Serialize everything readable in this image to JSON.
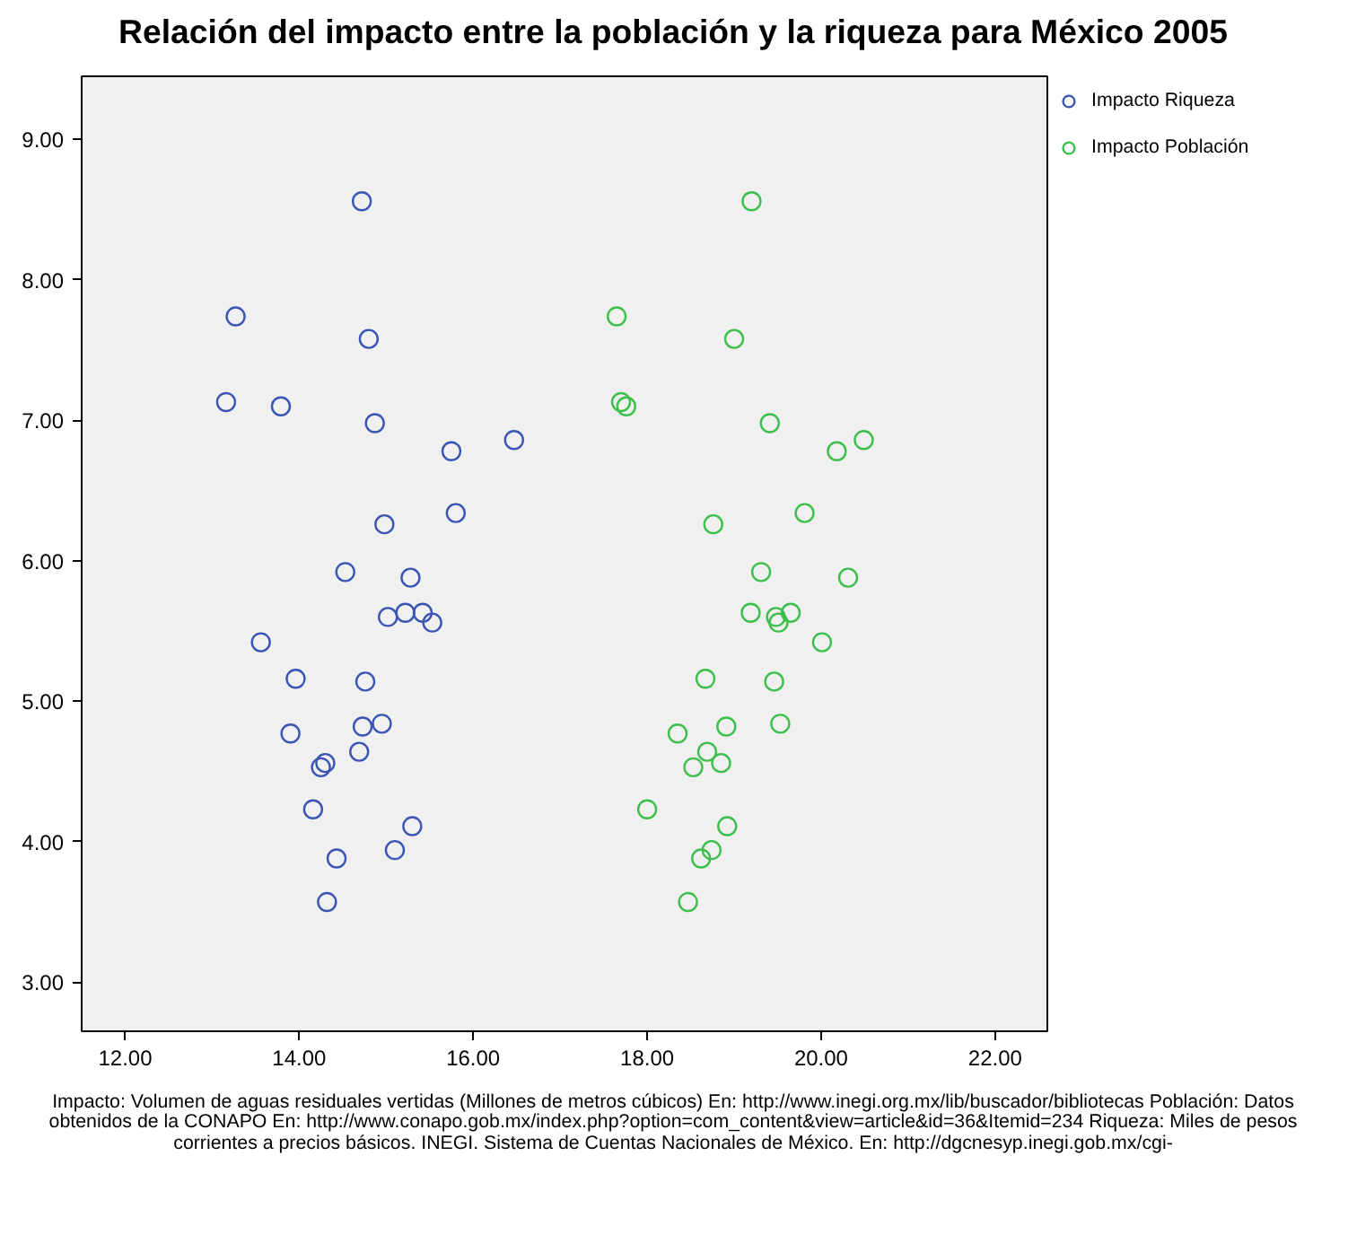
{
  "chart_data": {
    "type": "scatter",
    "title": "Relación del impacto entre la población y la riqueza para México 2005",
    "marker": "circle",
    "grid": false,
    "legend": "top right",
    "xlim": [
      11.5,
      22.6
    ],
    "ylim": [
      2.65,
      9.45
    ],
    "xticks": [
      {
        "value": 12,
        "label": "12.00"
      },
      {
        "value": 14,
        "label": "14.00"
      },
      {
        "value": 16,
        "label": "16.00"
      },
      {
        "value": 18,
        "label": "18.00"
      },
      {
        "value": 20,
        "label": "20.00"
      },
      {
        "value": 22,
        "label": "22.00"
      }
    ],
    "yticks": [
      {
        "value": 3,
        "label": "3.00"
      },
      {
        "value": 4,
        "label": "4.00"
      },
      {
        "value": 5,
        "label": "5.00"
      },
      {
        "value": 6,
        "label": "6.00"
      },
      {
        "value": 7,
        "label": "7.00"
      },
      {
        "value": 8,
        "label": "8.00"
      },
      {
        "value": 9,
        "label": "9.00"
      }
    ],
    "series": [
      {
        "name": "Impacto Riqueza",
        "color": "#3a55b4",
        "x": [
          14.72,
          13.27,
          14.8,
          13.16,
          13.79,
          14.87,
          15.75,
          16.47,
          14.98,
          15.8,
          14.53,
          15.28,
          15.02,
          15.22,
          15.42,
          15.53,
          13.56,
          13.96,
          14.76,
          13.9,
          14.73,
          14.95,
          14.69,
          14.3,
          14.25,
          14.16,
          15.3,
          15.1,
          14.43,
          14.32
        ],
        "values": [
          8.56,
          7.74,
          7.58,
          7.13,
          7.1,
          6.98,
          6.78,
          6.86,
          6.26,
          6.34,
          5.92,
          5.88,
          5.6,
          5.63,
          5.63,
          5.56,
          5.42,
          5.16,
          5.14,
          4.77,
          4.82,
          4.84,
          4.64,
          4.56,
          4.53,
          4.23,
          4.11,
          3.94,
          3.88,
          3.57
        ]
      },
      {
        "name": "Impacto Población",
        "color": "#3cbf4b",
        "x": [
          19.2,
          17.65,
          19.0,
          17.7,
          17.76,
          19.41,
          20.18,
          20.49,
          18.76,
          19.81,
          19.31,
          20.31,
          19.19,
          19.48,
          19.65,
          19.51,
          20.01,
          18.67,
          19.46,
          18.35,
          18.91,
          19.53,
          18.69,
          18.85,
          18.53,
          18.0,
          18.92,
          18.74,
          18.62,
          18.47
        ],
        "values": [
          8.56,
          7.74,
          7.58,
          7.13,
          7.1,
          6.98,
          6.78,
          6.86,
          6.26,
          6.34,
          5.92,
          5.88,
          5.63,
          5.6,
          5.63,
          5.56,
          5.42,
          5.16,
          5.14,
          4.77,
          4.82,
          4.84,
          4.64,
          4.56,
          4.53,
          4.23,
          4.11,
          3.94,
          3.88,
          3.57
        ]
      }
    ],
    "annotations": [
      "Impacto: Volumen de aguas residuales vertidas (Millones de metros cúbicos) En: http://www.inegi.org.mx/lib/buscador/bibliotecas    Población: Datos obtenidos de la CONAPO En: http://www.conapo.gob.mx/index.php?option=com_content&view=article&id=36&Itemid=234 Riqueza: Miles de pesos corrientes a precios básicos. INEGI. Sistema de Cuentas Nacionales de México. En: http://dgcnesyp.inegi.gob.mx/cgi-"
    ]
  }
}
